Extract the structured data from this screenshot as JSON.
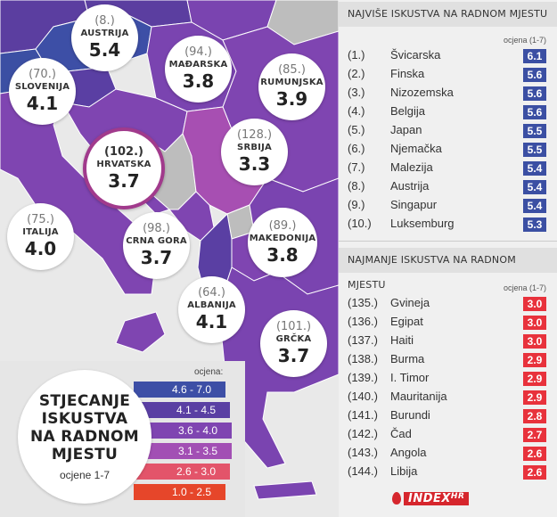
{
  "map": {
    "colors": {
      "sea": "#e9e9e9",
      "purple_dark": "#5b3ea0",
      "purple": "#7a44b0",
      "violet": "#8f48b3",
      "magenta": "#a74fb2",
      "pink": "#c04fb2",
      "grey": "#bdbdbd",
      "border": "#ffffff"
    },
    "bubbles": [
      {
        "id": "austria",
        "rank": "(8.)",
        "name": "AUSTRIJA",
        "score": "5.4"
      },
      {
        "id": "madarska",
        "rank": "(94.)",
        "name": "MAĐARSKA",
        "score": "3.8"
      },
      {
        "id": "rumunjska",
        "rank": "(85.)",
        "name": "RUMUNJSKA",
        "score": "3.9"
      },
      {
        "id": "slovenija",
        "rank": "(70.)",
        "name": "SLOVENIJA",
        "score": "4.1"
      },
      {
        "id": "srbija",
        "rank": "(128.)",
        "name": "SRBIJA",
        "score": "3.3"
      },
      {
        "id": "hrvatska",
        "rank": "(102.)",
        "name": "HRVATSKA",
        "score": "3.7"
      },
      {
        "id": "italija",
        "rank": "(75.)",
        "name": "ITALIJA",
        "score": "4.0"
      },
      {
        "id": "crnagora",
        "rank": "(98.)",
        "name": "CRNA GORA",
        "score": "3.7"
      },
      {
        "id": "makedonija",
        "rank": "(89.)",
        "name": "MAKEDONIJA",
        "score": "3.8"
      },
      {
        "id": "albanija",
        "rank": "(64.)",
        "name": "ALBANIJA",
        "score": "4.1"
      },
      {
        "id": "grcka",
        "rank": "(101.)",
        "name": "GRČKA",
        "score": "3.7"
      }
    ]
  },
  "legend": {
    "title_lines": [
      "STJECANJE",
      "ISKUSTVA",
      "NA RADNOM",
      "MJESTU"
    ],
    "subtitle": "ocjene 1-7",
    "label": "ocjena:",
    "ranges": [
      {
        "label": "4.6 - 7.0",
        "color": "#3d4fa6"
      },
      {
        "label": "4.1 - 4.5",
        "color": "#5a3fa3"
      },
      {
        "label": "3.6 - 4.0",
        "color": "#7f45b1"
      },
      {
        "label": "3.1 - 3.5",
        "color": "#a24fb4"
      },
      {
        "label": "2.6 - 3.0",
        "color": "#e3546a"
      },
      {
        "label": "1.0 - 2.5",
        "color": "#e6462a"
      }
    ]
  },
  "top": {
    "title": "NAJVIŠE ISKUSTVA NA RADNOM MJESTU",
    "score_label": "ocjena (1-7)",
    "rows": [
      {
        "rank": "(1.)",
        "country": "Švicarska",
        "score": "6.1"
      },
      {
        "rank": "(2.)",
        "country": "Finska",
        "score": "5.6"
      },
      {
        "rank": "(3.)",
        "country": "Nizozemska",
        "score": "5.6"
      },
      {
        "rank": "(4.)",
        "country": "Belgija",
        "score": "5.6"
      },
      {
        "rank": "(5.)",
        "country": "Japan",
        "score": "5.5"
      },
      {
        "rank": "(6.)",
        "country": "Njemačka",
        "score": "5.5"
      },
      {
        "rank": "(7.)",
        "country": "Malezija",
        "score": "5.4"
      },
      {
        "rank": "(8.)",
        "country": "Austrija",
        "score": "5.4"
      },
      {
        "rank": "(9.)",
        "country": "Singapur",
        "score": "5.4"
      },
      {
        "rank": "(10.)",
        "country": "Luksemburg",
        "score": "5.3"
      }
    ]
  },
  "bottom": {
    "title": "NAJMANJE ISKUSTVA NA RADNOM MJESTU",
    "score_label": "ocjena (1-7)",
    "rows": [
      {
        "rank": "(135.)",
        "country": "Gvineja",
        "score": "3.0"
      },
      {
        "rank": "(136.)",
        "country": "Egipat",
        "score": "3.0"
      },
      {
        "rank": "(137.)",
        "country": "Haiti",
        "score": "3.0"
      },
      {
        "rank": "(138.)",
        "country": "Burma",
        "score": "2.9"
      },
      {
        "rank": "(139.)",
        "country": "I. Timor",
        "score": "2.9"
      },
      {
        "rank": "(140.)",
        "country": "Mauritanija",
        "score": "2.9"
      },
      {
        "rank": "(141.)",
        "country": "Burundi",
        "score": "2.8"
      },
      {
        "rank": "(142.)",
        "country": "Čad",
        "score": "2.7"
      },
      {
        "rank": "(143.)",
        "country": "Angola",
        "score": "2.6"
      },
      {
        "rank": "(144.)",
        "country": "Libija",
        "score": "2.6"
      }
    ]
  },
  "logo": {
    "text": "INDEX",
    "suffix": "HR"
  }
}
